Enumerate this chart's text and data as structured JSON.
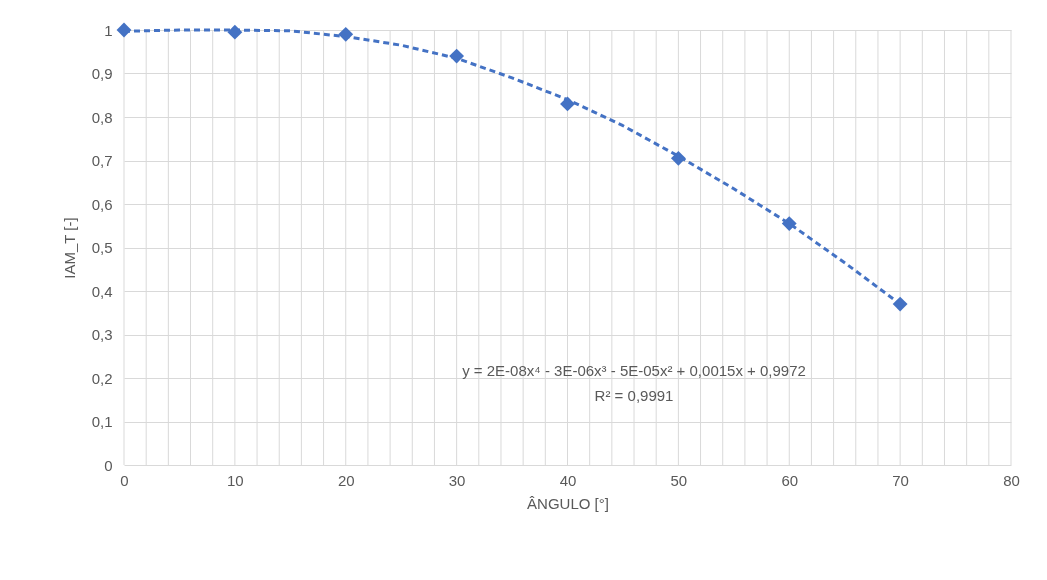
{
  "chart_data": {
    "type": "scatter",
    "xlabel": "ÂNGULO [°]",
    "ylabel": "IAM_T [-]",
    "series": [
      {
        "color": "#4472c4",
        "marker": "diamond",
        "x": [
          0,
          10,
          20,
          30,
          40,
          50,
          60,
          70
        ],
        "values": [
          1.0,
          0.995,
          0.99,
          0.94,
          0.83,
          0.705,
          0.555,
          0.37
        ]
      },
      {
        "type": "line",
        "color": "#4472c4",
        "line_style": "dashed",
        "marker": "none",
        "x": [
          0,
          5,
          10,
          15,
          20,
          25,
          30,
          35,
          40,
          45,
          50,
          55,
          60,
          65,
          70
        ],
        "values": [
          0.997,
          1.0,
          1.0,
          0.998,
          0.985,
          0.965,
          0.935,
          0.89,
          0.84,
          0.78,
          0.71,
          0.635,
          0.555,
          0.465,
          0.37
        ]
      }
    ],
    "xlim": [
      0,
      80
    ],
    "xticks": [
      0,
      {
        "value": 2,
        "label": null
      },
      {
        "value": 4,
        "label": null
      },
      {
        "value": 6,
        "label": null
      },
      {
        "value": 8,
        "label": null
      },
      10,
      {
        "value": 12,
        "label": null
      },
      {
        "value": 14,
        "label": null
      },
      {
        "value": 16,
        "label": null
      },
      {
        "value": 18,
        "label": null
      },
      20,
      {
        "value": 22,
        "label": null
      },
      {
        "value": 24,
        "label": null
      },
      {
        "value": 26,
        "label": null
      },
      {
        "value": 28,
        "label": null
      },
      30,
      {
        "value": 32,
        "label": null
      },
      {
        "value": 34,
        "label": null
      },
      {
        "value": 36,
        "label": null
      },
      {
        "value": 38,
        "label": null
      },
      40,
      {
        "value": 42,
        "label": null
      },
      {
        "value": 44,
        "label": null
      },
      {
        "value": 46,
        "label": null
      },
      {
        "value": 48,
        "label": null
      },
      50,
      {
        "value": 52,
        "label": null
      },
      {
        "value": 54,
        "label": null
      },
      {
        "value": 56,
        "label": null
      },
      {
        "value": 58,
        "label": null
      },
      60,
      {
        "value": 62,
        "label": null
      },
      {
        "value": 64,
        "label": null
      },
      {
        "value": 66,
        "label": null
      },
      {
        "value": 68,
        "label": null
      },
      70,
      {
        "value": 72,
        "label": null
      },
      {
        "value": 74,
        "label": null
      },
      {
        "value": 76,
        "label": null
      },
      {
        "value": 78,
        "label": null
      },
      80
    ],
    "ylim": [
      0,
      1
    ],
    "yticks": [
      0,
      {
        "value": 0.1,
        "label": "0,1"
      },
      {
        "value": 0.2,
        "label": "0,2"
      },
      {
        "value": 0.3,
        "label": "0,3"
      },
      {
        "value": 0.4,
        "label": "0,4"
      },
      {
        "value": 0.5,
        "label": "0,5"
      },
      {
        "value": 0.6,
        "label": "0,6"
      },
      {
        "value": 0.7,
        "label": "0,7"
      },
      {
        "value": 0.8,
        "label": "0,8"
      },
      {
        "value": 0.9,
        "label": "0,9"
      },
      1
    ],
    "grid": true,
    "legend": false,
    "annotations": [
      "y = 2E-08x⁴ - 3E-06x³ - 5E-05x² + 0,0015x + 0,9972",
      "R² = 0,9991"
    ]
  }
}
